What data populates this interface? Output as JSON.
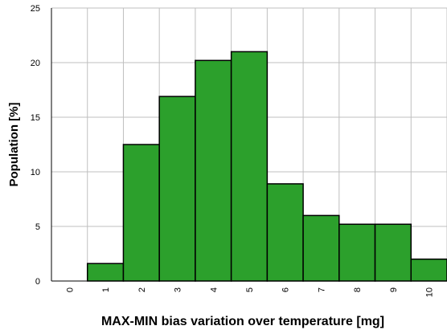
{
  "chart_data": {
    "type": "bar",
    "title": "",
    "xlabel": "MAX-MIN bias variation over temperature [mg]",
    "ylabel": "Population [%]",
    "categories": [
      "0",
      "1",
      "2",
      "3",
      "4",
      "5",
      "6",
      "7",
      "8",
      "9",
      "10"
    ],
    "values": [
      0,
      1.6,
      12.5,
      16.9,
      20.2,
      21.0,
      8.9,
      6.0,
      5.2,
      5.2,
      2.0
    ],
    "ylim": [
      0,
      25
    ],
    "yticks": [
      "0",
      "5",
      "10",
      "15",
      "20",
      "25"
    ],
    "grid": true,
    "legend": "none",
    "bar_color": "#2ca02c",
    "bar_edge_color": "#000000",
    "grid_color": "#bfbfbf",
    "axis_color": "#000000"
  }
}
